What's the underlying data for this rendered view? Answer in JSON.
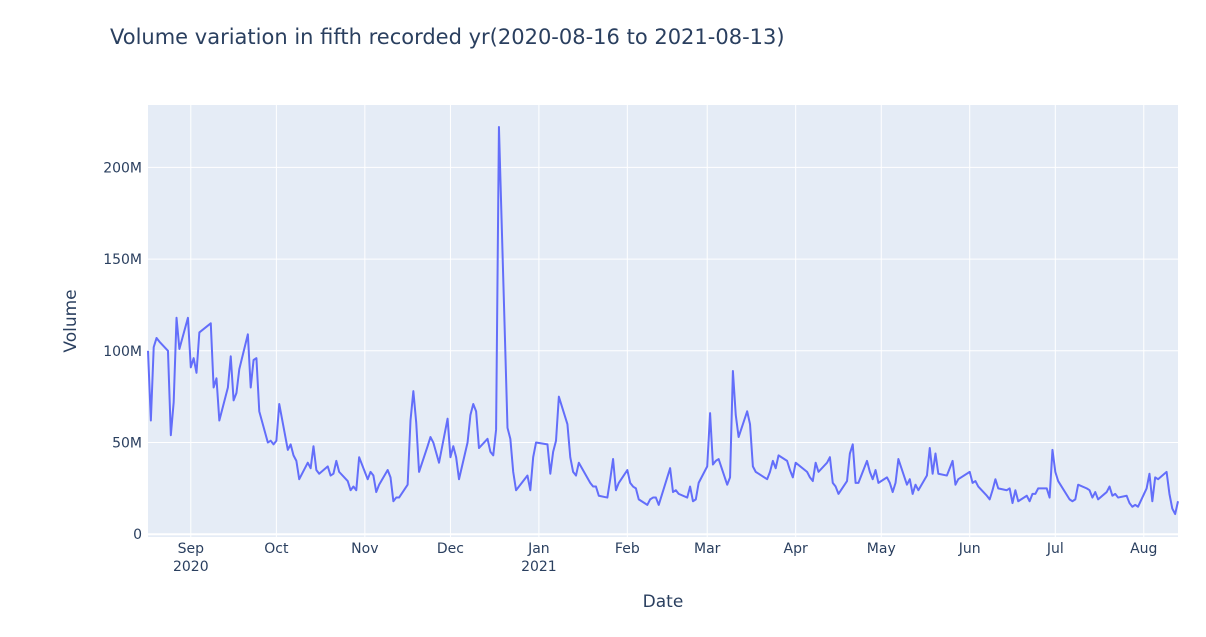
{
  "chart_data": {
    "type": "line",
    "title": "Volume variation in fifth recorded yr(2020-08-16 to 2021-08-13)",
    "x_label": "Date",
    "y_label": "Volume",
    "color": "#636efa",
    "grid": true,
    "x": [
      "2020-08-17",
      "2020-08-18",
      "2020-08-19",
      "2020-08-20",
      "2020-08-21",
      "2020-08-24",
      "2020-08-25",
      "2020-08-26",
      "2020-08-27",
      "2020-08-28",
      "2020-08-31",
      "2020-09-01",
      "2020-09-02",
      "2020-09-03",
      "2020-09-04",
      "2020-09-08",
      "2020-09-09",
      "2020-09-10",
      "2020-09-11",
      "2020-09-14",
      "2020-09-15",
      "2020-09-16",
      "2020-09-17",
      "2020-09-18",
      "2020-09-21",
      "2020-09-22",
      "2020-09-23",
      "2020-09-24",
      "2020-09-25",
      "2020-09-28",
      "2020-09-29",
      "2020-09-30",
      "2020-10-01",
      "2020-10-02",
      "2020-10-05",
      "2020-10-06",
      "2020-10-07",
      "2020-10-08",
      "2020-10-09",
      "2020-10-12",
      "2020-10-13",
      "2020-10-14",
      "2020-10-15",
      "2020-10-16",
      "2020-10-19",
      "2020-10-20",
      "2020-10-21",
      "2020-10-22",
      "2020-10-23",
      "2020-10-26",
      "2020-10-27",
      "2020-10-28",
      "2020-10-29",
      "2020-10-30",
      "2020-11-02",
      "2020-11-03",
      "2020-11-04",
      "2020-11-05",
      "2020-11-06",
      "2020-11-09",
      "2020-11-10",
      "2020-11-11",
      "2020-11-12",
      "2020-11-13",
      "2020-11-16",
      "2020-11-17",
      "2020-11-18",
      "2020-11-19",
      "2020-11-20",
      "2020-11-23",
      "2020-11-24",
      "2020-11-25",
      "2020-11-27",
      "2020-11-30",
      "2020-12-01",
      "2020-12-02",
      "2020-12-03",
      "2020-12-04",
      "2020-12-07",
      "2020-12-08",
      "2020-12-09",
      "2020-12-10",
      "2020-12-11",
      "2020-12-14",
      "2020-12-15",
      "2020-12-16",
      "2020-12-17",
      "2020-12-18",
      "2020-12-21",
      "2020-12-22",
      "2020-12-23",
      "2020-12-24",
      "2020-12-28",
      "2020-12-29",
      "2020-12-30",
      "2020-12-31",
      "2021-01-04",
      "2021-01-05",
      "2021-01-06",
      "2021-01-07",
      "2021-01-08",
      "2021-01-11",
      "2021-01-12",
      "2021-01-13",
      "2021-01-14",
      "2021-01-15",
      "2021-01-19",
      "2021-01-20",
      "2021-01-21",
      "2021-01-22",
      "2021-01-25",
      "2021-01-26",
      "2021-01-27",
      "2021-01-28",
      "2021-01-29",
      "2021-02-01",
      "2021-02-02",
      "2021-02-03",
      "2021-02-04",
      "2021-02-05",
      "2021-02-08",
      "2021-02-09",
      "2021-02-10",
      "2021-02-11",
      "2021-02-12",
      "2021-02-16",
      "2021-02-17",
      "2021-02-18",
      "2021-02-19",
      "2021-02-22",
      "2021-02-23",
      "2021-02-24",
      "2021-02-25",
      "2021-02-26",
      "2021-03-01",
      "2021-03-02",
      "2021-03-03",
      "2021-03-04",
      "2021-03-05",
      "2021-03-08",
      "2021-03-09",
      "2021-03-10",
      "2021-03-11",
      "2021-03-12",
      "2021-03-15",
      "2021-03-16",
      "2021-03-17",
      "2021-03-18",
      "2021-03-19",
      "2021-03-22",
      "2021-03-23",
      "2021-03-24",
      "2021-03-25",
      "2021-03-26",
      "2021-03-29",
      "2021-03-30",
      "2021-03-31",
      "2021-04-01",
      "2021-04-05",
      "2021-04-06",
      "2021-04-07",
      "2021-04-08",
      "2021-04-09",
      "2021-04-12",
      "2021-04-13",
      "2021-04-14",
      "2021-04-15",
      "2021-04-16",
      "2021-04-19",
      "2021-04-20",
      "2021-04-21",
      "2021-04-22",
      "2021-04-23",
      "2021-04-26",
      "2021-04-27",
      "2021-04-28",
      "2021-04-29",
      "2021-04-30",
      "2021-05-03",
      "2021-05-04",
      "2021-05-05",
      "2021-05-06",
      "2021-05-07",
      "2021-05-10",
      "2021-05-11",
      "2021-05-12",
      "2021-05-13",
      "2021-05-14",
      "2021-05-17",
      "2021-05-18",
      "2021-05-19",
      "2021-05-20",
      "2021-05-21",
      "2021-05-24",
      "2021-05-25",
      "2021-05-26",
      "2021-05-27",
      "2021-05-28",
      "2021-06-01",
      "2021-06-02",
      "2021-06-03",
      "2021-06-04",
      "2021-06-07",
      "2021-06-08",
      "2021-06-09",
      "2021-06-10",
      "2021-06-11",
      "2021-06-14",
      "2021-06-15",
      "2021-06-16",
      "2021-06-17",
      "2021-06-18",
      "2021-06-21",
      "2021-06-22",
      "2021-06-23",
      "2021-06-24",
      "2021-06-25",
      "2021-06-28",
      "2021-06-29",
      "2021-06-30",
      "2021-07-01",
      "2021-07-02",
      "2021-07-06",
      "2021-07-07",
      "2021-07-08",
      "2021-07-09",
      "2021-07-12",
      "2021-07-13",
      "2021-07-14",
      "2021-07-15",
      "2021-07-16",
      "2021-07-19",
      "2021-07-20",
      "2021-07-21",
      "2021-07-22",
      "2021-07-23",
      "2021-07-26",
      "2021-07-27",
      "2021-07-28",
      "2021-07-29",
      "2021-07-30",
      "2021-08-02",
      "2021-08-03",
      "2021-08-04",
      "2021-08-05",
      "2021-08-06",
      "2021-08-09",
      "2021-08-10",
      "2021-08-11",
      "2021-08-12",
      "2021-08-13"
    ],
    "values": [
      100000000.0,
      62000000.0,
      102000000.0,
      107000000.0,
      105000000.0,
      100000000.0,
      54000000.0,
      72000000.0,
      118000000.0,
      101000000.0,
      118000000.0,
      91000000.0,
      96000000.0,
      88000000.0,
      110000000.0,
      115000000.0,
      80000000.0,
      85000000.0,
      62000000.0,
      80000000.0,
      97000000.0,
      73000000.0,
      77000000.0,
      90000000.0,
      109000000.0,
      80000000.0,
      95000000.0,
      96000000.0,
      67000000.0,
      50000000.0,
      51000000.0,
      49000000.0,
      51000000.0,
      71000000.0,
      46000000.0,
      49000000.0,
      43000000.0,
      40000000.0,
      30000000.0,
      39000000.0,
      36000000.0,
      48000000.0,
      35000000.0,
      33000000.0,
      37000000.0,
      32000000.0,
      33000000.0,
      40000000.0,
      34000000.0,
      29000000.0,
      24000000.0,
      26000000.0,
      24000000.0,
      42000000.0,
      30000000.0,
      34000000.0,
      32000000.0,
      23000000.0,
      27000000.0,
      35000000.0,
      31000000.0,
      18000000.0,
      20000000.0,
      20000000.0,
      27000000.0,
      62000000.0,
      78000000.0,
      61000000.0,
      34000000.0,
      48000000.0,
      53000000.0,
      50000000.0,
      39000000.0,
      63000000.0,
      42000000.0,
      48000000.0,
      42000000.0,
      30000000.0,
      50000000.0,
      65000000.0,
      71000000.0,
      67000000.0,
      47000000.0,
      52000000.0,
      45000000.0,
      43000000.0,
      57000000.0,
      222000000.0,
      58000000.0,
      52000000.0,
      34000000.0,
      24000000.0,
      32000000.0,
      24000000.0,
      42000000.0,
      50000000.0,
      49000000.0,
      33000000.0,
      45000000.0,
      51000000.0,
      75000000.0,
      60000000.0,
      42000000.0,
      34000000.0,
      32000000.0,
      39000000.0,
      28000000.0,
      26000000.0,
      26000000.0,
      21000000.0,
      20000000.0,
      30000000.0,
      41000000.0,
      24000000.0,
      28000000.0,
      35000000.0,
      28000000.0,
      26000000.0,
      25000000.0,
      19000000.0,
      16000000.0,
      19000000.0,
      20000000.0,
      20000000.0,
      16000000.0,
      36000000.0,
      23000000.0,
      24000000.0,
      22000000.0,
      20000000.0,
      26000000.0,
      18000000.0,
      19000000.0,
      28000000.0,
      37000000.0,
      66000000.0,
      38000000.0,
      40000000.0,
      41000000.0,
      27000000.0,
      31000000.0,
      89000000.0,
      65000000.0,
      53000000.0,
      67000000.0,
      60000000.0,
      37000000.0,
      34000000.0,
      33000000.0,
      30000000.0,
      34000000.0,
      40000000.0,
      36000000.0,
      43000000.0,
      40000000.0,
      35000000.0,
      31000000.0,
      39000000.0,
      34000000.0,
      31000000.0,
      29000000.0,
      39000000.0,
      34000000.0,
      39000000.0,
      42000000.0,
      28000000.0,
      26000000.0,
      22000000.0,
      29000000.0,
      44000000.0,
      49000000.0,
      28000000.0,
      28000000.0,
      40000000.0,
      34000000.0,
      30000000.0,
      35000000.0,
      28000000.0,
      31000000.0,
      28000000.0,
      23000000.0,
      28000000.0,
      41000000.0,
      27000000.0,
      30000000.0,
      22000000.0,
      27000000.0,
      24000000.0,
      32000000.0,
      47000000.0,
      33000000.0,
      44000000.0,
      33000000.0,
      32000000.0,
      36000000.0,
      40000000.0,
      27000000.0,
      30000000.0,
      34000000.0,
      28000000.0,
      29000000.0,
      26000000.0,
      21000000.0,
      19000000.0,
      24000000.0,
      30000000.0,
      25000000.0,
      24000000.0,
      25000000.0,
      17000000.0,
      24000000.0,
      18000000.0,
      21000000.0,
      18000000.0,
      22000000.0,
      22000000.0,
      25000000.0,
      25000000.0,
      20000000.0,
      46000000.0,
      34000000.0,
      29000000.0,
      19000000.0,
      18000000.0,
      19000000.0,
      27000000.0,
      25000000.0,
      24000000.0,
      20000000.0,
      23000000.0,
      19000000.0,
      23000000.0,
      26000000.0,
      21000000.0,
      22000000.0,
      20000000.0,
      21000000.0,
      17000000.0,
      15000000.0,
      16000000.0,
      15000000.0,
      25000000.0,
      33000000.0,
      18000000.0,
      31000000.0,
      30000000.0,
      34000000.0,
      22000000.0,
      14000000.0,
      11000000.0,
      18000000.0
    ],
    "xlim": [
      "2020-08-17",
      "2021-08-13"
    ],
    "xticks": [
      {
        "value": "2020-09-01",
        "label": "Sep\n2020"
      },
      {
        "value": "2020-10-01",
        "label": "Oct"
      },
      {
        "value": "2020-11-01",
        "label": "Nov"
      },
      {
        "value": "2020-12-01",
        "label": "Dec"
      },
      {
        "value": "2021-01-01",
        "label": "Jan\n2021"
      },
      {
        "value": "2021-02-01",
        "label": "Feb"
      },
      {
        "value": "2021-03-01",
        "label": "Mar"
      },
      {
        "value": "2021-04-01",
        "label": "Apr"
      },
      {
        "value": "2021-05-01",
        "label": "May"
      },
      {
        "value": "2021-06-01",
        "label": "Jun"
      },
      {
        "value": "2021-07-01",
        "label": "Jul"
      },
      {
        "value": "2021-08-01",
        "label": "Aug"
      }
    ],
    "ylim": [
      -1500000.0,
      234000000.0
    ],
    "yticks": [
      0,
      {
        "value": 50000000,
        "label": "50M"
      },
      {
        "value": 100000000,
        "label": "100M"
      },
      {
        "value": 150000000,
        "label": "150M"
      },
      {
        "value": 200000000,
        "label": "200M"
      }
    ]
  }
}
